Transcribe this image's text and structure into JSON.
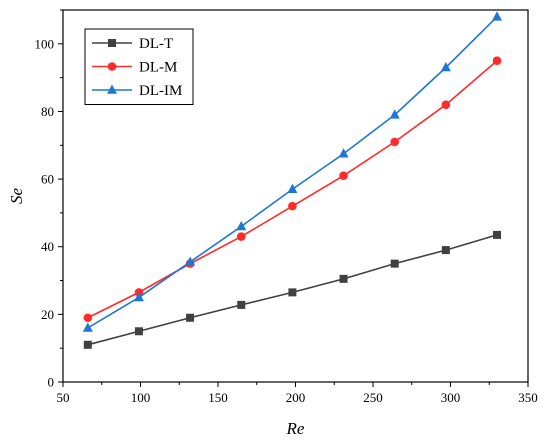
{
  "chart_data": {
    "type": "line",
    "xlabel": "Re",
    "ylabel": "Se",
    "xlim": [
      50,
      350
    ],
    "ylim": [
      0,
      110
    ],
    "xticks": [
      50,
      100,
      150,
      200,
      250,
      300,
      350
    ],
    "yticks": [
      0,
      20,
      40,
      60,
      80,
      100
    ],
    "grid": false,
    "legend_position": "top-left",
    "x": [
      66,
      99,
      132,
      165,
      198,
      231,
      264,
      297,
      330
    ],
    "series": [
      {
        "name": "DL-T",
        "color": "#404040",
        "marker": "square",
        "values": [
          11,
          15,
          19,
          22.8,
          26.5,
          30.5,
          35,
          39,
          43.5
        ]
      },
      {
        "name": "DL-M",
        "color": "#ff2a2a",
        "marker": "circle",
        "values": [
          19,
          26.5,
          35,
          43,
          52,
          61,
          71,
          82,
          95
        ]
      },
      {
        "name": "DL-IM",
        "color": "#1f77d4",
        "marker": "triangle",
        "values": [
          16,
          25,
          35.5,
          46,
          57,
          67.5,
          79,
          93,
          108
        ]
      }
    ]
  }
}
